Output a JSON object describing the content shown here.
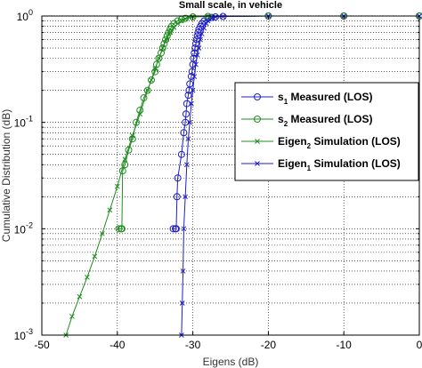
{
  "chart_data": {
    "type": "line",
    "title": "Small scale, in vehicle",
    "xlabel": "Eigens (dB)",
    "ylabel": "Cumulative Distribution (dB)",
    "xlim": [
      -50,
      0
    ],
    "ylim": [
      0.001,
      1
    ],
    "yscale": "log",
    "grid": true,
    "x_ticks": [
      -50,
      -40,
      -30,
      -20,
      -10,
      0
    ],
    "x_tick_labels": [
      "-50",
      "-40",
      "-30",
      "-20",
      "-10",
      "0"
    ],
    "y_ticks": [
      0.001,
      0.01,
      0.1,
      1
    ],
    "y_tick_labels": [
      {
        "base": "10",
        "exp": "-3"
      },
      {
        "base": "10",
        "exp": "-2"
      },
      {
        "base": "10",
        "exp": "-1"
      },
      {
        "base": "10",
        "exp": "0"
      }
    ],
    "legend_position": "right-center",
    "series": [
      {
        "name": "s1 Measured (LOS)",
        "label_parts": [
          "s",
          "1",
          " Measured (LOS)"
        ],
        "color": "#1f1fc8",
        "marker": "circle",
        "line": true,
        "x": [
          -32.6,
          -32.3,
          -32.2,
          -32.1,
          -32.0,
          -31.5,
          -31.2,
          -31.0,
          -30.9,
          -30.8,
          -30.6,
          -30.5,
          -30.4,
          -30.2,
          -30.1,
          -30.0,
          -29.9,
          -29.8,
          -29.7,
          -29.6,
          -29.5,
          -29.4,
          -29.3,
          -29.2,
          -29.0,
          -28.8,
          -28.5,
          -28.0,
          -27.5,
          -27.0,
          -26.0,
          -20.0,
          -10.0,
          0.0
        ],
        "y": [
          0.01,
          0.01,
          0.01,
          0.02,
          0.03,
          0.05,
          0.08,
          0.1,
          0.12,
          0.15,
          0.18,
          0.2,
          0.23,
          0.27,
          0.3,
          0.35,
          0.4,
          0.45,
          0.5,
          0.55,
          0.6,
          0.65,
          0.7,
          0.75,
          0.8,
          0.85,
          0.9,
          0.95,
          0.97,
          0.98,
          0.99,
          1.0,
          1.0,
          1.0
        ]
      },
      {
        "name": "s2 Measured (LOS)",
        "label_parts": [
          "s",
          "2",
          " Measured (LOS)"
        ],
        "color": "#1f8c1f",
        "marker": "circle",
        "line": true,
        "x": [
          -39.8,
          -39.5,
          -39.4,
          -39.3,
          -39.0,
          -38.5,
          -38.0,
          -37.5,
          -37.0,
          -36.5,
          -36.0,
          -35.5,
          -35.0,
          -34.8,
          -34.5,
          -34.2,
          -34.0,
          -33.8,
          -33.6,
          -33.4,
          -33.2,
          -33.0,
          -32.8,
          -32.5,
          -32.0,
          -31.5,
          -31.0,
          -30.0,
          -28.0,
          -20.0,
          -10.0,
          0.0
        ],
        "y": [
          0.01,
          0.01,
          0.01,
          0.035,
          0.04,
          0.055,
          0.07,
          0.1,
          0.13,
          0.17,
          0.2,
          0.25,
          0.3,
          0.35,
          0.4,
          0.45,
          0.5,
          0.55,
          0.6,
          0.65,
          0.7,
          0.75,
          0.8,
          0.85,
          0.9,
          0.93,
          0.95,
          0.98,
          0.99,
          1.0,
          1.0,
          1.0
        ]
      },
      {
        "name": "Eigen2 Simulation (LOS)",
        "label_parts": [
          "Eigen",
          "2",
          " Simulation (LOS)"
        ],
        "color": "#1f8c1f",
        "marker": "x",
        "line": true,
        "x": [
          -46.8,
          -46.0,
          -45.0,
          -44.0,
          -43.0,
          -42.0,
          -41.0,
          -40.0,
          -39.0,
          -38.0,
          -37.0,
          -36.0,
          -35.5,
          -35.0,
          -34.5,
          -34.0,
          -33.5,
          -33.0,
          -32.5,
          -32.0,
          -31.5,
          -31.0,
          -30.5,
          -30.0,
          -28.0,
          -20.0,
          -10.0,
          0.0
        ],
        "y": [
          0.001,
          0.0015,
          0.0023,
          0.0035,
          0.0055,
          0.009,
          0.015,
          0.025,
          0.045,
          0.075,
          0.12,
          0.2,
          0.25,
          0.32,
          0.4,
          0.5,
          0.6,
          0.7,
          0.78,
          0.85,
          0.9,
          0.94,
          0.97,
          0.99,
          1.0,
          1.0,
          1.0,
          1.0
        ]
      },
      {
        "name": "Eigen1 Simulation (LOS)",
        "label_parts": [
          "Eigen",
          "1",
          " Simulation (LOS)"
        ],
        "color": "#1f1fc8",
        "marker": "x",
        "line": true,
        "x": [
          -31.5,
          -31.4,
          -31.3,
          -31.2,
          -31.0,
          -30.8,
          -30.6,
          -30.4,
          -30.2,
          -30.0,
          -29.8,
          -29.6,
          -29.4,
          -29.2,
          -29.0,
          -28.8,
          -28.5,
          -28.2,
          -28.0,
          -27.5,
          -27.0,
          -26.0,
          -20.0,
          -10.0,
          0.0
        ],
        "y": [
          0.001,
          0.002,
          0.004,
          0.01,
          0.02,
          0.04,
          0.07,
          0.1,
          0.15,
          0.2,
          0.27,
          0.35,
          0.43,
          0.5,
          0.6,
          0.68,
          0.77,
          0.85,
          0.9,
          0.95,
          0.98,
          0.99,
          1.0,
          1.0,
          1.0
        ]
      }
    ]
  }
}
